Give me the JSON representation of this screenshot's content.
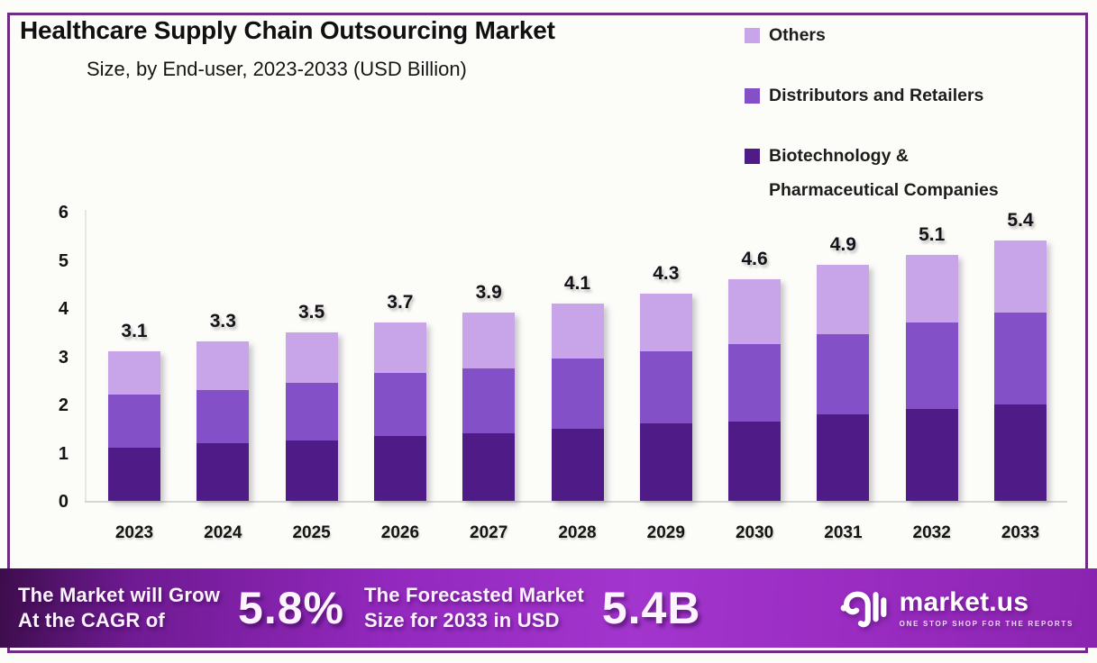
{
  "header": {
    "title": "Healthcare Supply Chain Outsourcing Market",
    "subtitle": "Size, by End-user, 2023-2033 (USD Billion)"
  },
  "legend": {
    "items": [
      {
        "key": "others",
        "label": "Others",
        "color": "#c8a4e8"
      },
      {
        "key": "distributors-retailers",
        "label": "Distributors and Retailers",
        "color": "#8450c8"
      },
      {
        "key": "biotech-pharma",
        "label": "Biotechnology &\nPharmaceutical Companies",
        "color": "#4f1c87"
      }
    ]
  },
  "chart_data": {
    "type": "bar",
    "stacked": true,
    "title": "Healthcare Supply Chain Outsourcing Market Size, by End-user, 2023-2033 (USD Billion)",
    "xlabel": "",
    "ylabel": "",
    "ylim": [
      0,
      6
    ],
    "y_ticks": [
      0,
      1,
      2,
      3,
      4,
      5,
      6
    ],
    "grid": false,
    "legend_position": "top-right",
    "categories": [
      "2023",
      "2024",
      "2025",
      "2026",
      "2027",
      "2028",
      "2029",
      "2030",
      "2031",
      "2032",
      "2033"
    ],
    "series": [
      {
        "key": "biotech-pharma",
        "name": "Biotechnology & Pharmaceutical Companies",
        "color": "#4f1c87",
        "values": [
          1.1,
          1.2,
          1.25,
          1.35,
          1.4,
          1.5,
          1.6,
          1.65,
          1.8,
          1.9,
          2.0
        ]
      },
      {
        "key": "distributors-retailers",
        "name": "Distributors and Retailers",
        "color": "#8450c8",
        "values": [
          1.1,
          1.1,
          1.2,
          1.3,
          1.35,
          1.45,
          1.5,
          1.6,
          1.65,
          1.8,
          1.9
        ]
      },
      {
        "key": "others",
        "name": "Others",
        "color": "#c8a4e8",
        "values": [
          0.9,
          1.0,
          1.05,
          1.05,
          1.15,
          1.15,
          1.2,
          1.35,
          1.45,
          1.4,
          1.5
        ]
      }
    ],
    "totals": [
      "3.1",
      "3.3",
      "3.5",
      "3.7",
      "3.9",
      "4.1",
      "4.3",
      "4.6",
      "4.9",
      "5.1",
      "5.4"
    ]
  },
  "footer": {
    "stat1_label": "The Market will Grow\nAt the CAGR of",
    "stat1_value": "5.8%",
    "stat2_label": "The Forecasted Market\nSize for 2033 in USD",
    "stat2_value": "5.4B",
    "brand": "market.us",
    "brand_tagline": "ONE STOP SHOP FOR THE REPORTS"
  },
  "colors": {
    "border": "#702c85",
    "bar_dark": "#4f1c87",
    "bar_mid": "#8450c8",
    "bar_light": "#c8a4e8",
    "footer_gradient": [
      "#3d0d4c",
      "#9228bd",
      "#a235cd",
      "#8a24af"
    ]
  }
}
